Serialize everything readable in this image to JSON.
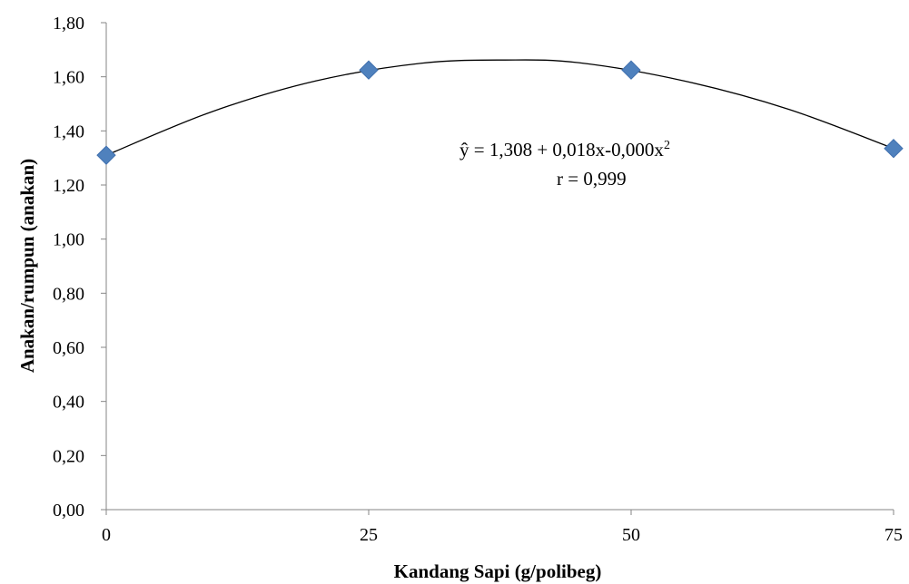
{
  "chart_data": {
    "type": "scatter",
    "xlabel": "Kandang Sapi (g/polibeg)",
    "ylabel": "Anakan/rumpun (anakan)",
    "x_ticks": [
      "0",
      "25",
      "50",
      "75"
    ],
    "y_ticks": [
      "0,00",
      "0,20",
      "0,40",
      "0,60",
      "0,80",
      "1,00",
      "1,20",
      "1,40",
      "1,60",
      "1,80"
    ],
    "xlim": [
      0,
      75
    ],
    "ylim": [
      0,
      1.8
    ],
    "grid": false,
    "series": [
      {
        "x": [
          0,
          25,
          50,
          75
        ],
        "y": [
          1.31,
          1.625,
          1.625,
          1.335
        ],
        "marker": "diamond",
        "color": "#4f81bd"
      }
    ],
    "trendline": {
      "type": "polynomial-2",
      "color": "#000000",
      "x": [
        0,
        10,
        20,
        30,
        38,
        45,
        55,
        65,
        75
      ],
      "y": [
        1.31,
        1.47,
        1.585,
        1.65,
        1.662,
        1.652,
        1.585,
        1.48,
        1.335
      ]
    },
    "annotations": {
      "equation_prefix": "ŷ = 1,308 + 0,018x-0,000x",
      "equation_superscript": "2",
      "r_text": "r = 0,999"
    }
  }
}
